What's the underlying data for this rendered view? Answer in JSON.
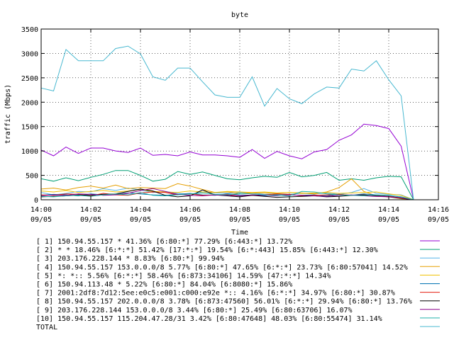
{
  "chart_data": {
    "type": "line",
    "title": "byte",
    "xlabel": "Time",
    "ylabel": "traffic (Mbps)",
    "ylim": [
      0,
      3500
    ],
    "xlim": [
      0,
      16
    ],
    "yticks": [
      0,
      500,
      1000,
      1500,
      2000,
      2500,
      3000,
      3500
    ],
    "xticks": [
      {
        "t": 0,
        "time": "14:00",
        "date": "09/05"
      },
      {
        "t": 2,
        "time": "14:02",
        "date": "09/05"
      },
      {
        "t": 4,
        "time": "14:04",
        "date": "09/05"
      },
      {
        "t": 6,
        "time": "14:06",
        "date": "09/05"
      },
      {
        "t": 8,
        "time": "14:08",
        "date": "09/05"
      },
      {
        "t": 10,
        "time": "14:10",
        "date": "09/05"
      },
      {
        "t": 12,
        "time": "14:12",
        "date": "09/05"
      },
      {
        "t": 14,
        "time": "14:14",
        "date": "09/05"
      },
      {
        "t": 16,
        "time": "14:16",
        "date": "09/05"
      }
    ],
    "x": [
      0,
      0.5,
      1,
      1.5,
      2,
      2.5,
      3,
      3.5,
      4,
      4.5,
      5,
      5.5,
      6,
      6.5,
      7,
      7.5,
      8,
      8.5,
      9,
      9.5,
      10,
      10.5,
      11,
      11.5,
      12,
      12.5,
      13,
      13.5,
      14,
      14.5,
      15
    ],
    "series": [
      {
        "name": "[ 1] 150.94.55.157 * 41.36%  [6:80:*] 77.29% [6:443:*] 13.72%",
        "color": "#9400d3",
        "values": [
          1020,
          900,
          1080,
          950,
          1060,
          1060,
          1000,
          970,
          1060,
          910,
          930,
          900,
          980,
          920,
          920,
          900,
          870,
          1030,
          850,
          990,
          900,
          840,
          980,
          1030,
          1220,
          1330,
          1550,
          1520,
          1460,
          1100,
          0
        ]
      },
      {
        "name": "[ 2] * * 18.46%  [6:*:*] 51.42% [17:*:*] 19.54% [6:*:443] 15.85% [6:443:*] 12.30%",
        "color": "#009e73",
        "values": [
          430,
          380,
          450,
          390,
          460,
          520,
          600,
          600,
          500,
          380,
          420,
          580,
          520,
          570,
          500,
          430,
          410,
          450,
          480,
          460,
          560,
          470,
          500,
          560,
          400,
          430,
          400,
          450,
          480,
          470,
          0
        ]
      },
      {
        "name": "[ 3] 203.176.228.144 * 8.83%  [6:80:*] 99.94%",
        "color": "#56b4e9",
        "values": [
          150,
          100,
          130,
          170,
          160,
          230,
          190,
          240,
          200,
          150,
          170,
          130,
          110,
          160,
          140,
          130,
          150,
          140,
          110,
          120,
          110,
          130,
          120,
          140,
          110,
          150,
          230,
          130,
          110,
          100,
          0
        ]
      },
      {
        "name": "[ 4] 150.94.55.157 153.0.0.0/8 5.77%  [6:80:*] 47.65% [6:*:*] 23.73% [6:80:57041] 14.52%",
        "color": "#e69f00",
        "values": [
          220,
          240,
          200,
          250,
          280,
          240,
          300,
          230,
          250,
          240,
          230,
          330,
          280,
          210,
          150,
          160,
          130,
          140,
          140,
          130,
          150,
          140,
          120,
          160,
          250,
          430,
          170,
          80,
          60,
          20,
          0
        ]
      },
      {
        "name": "[ 5] *: *:: 5.56%  [6:*:*] 58.46% [6:873:34106] 14.59% [47:*:*] 14.34%",
        "color": "#f0c000",
        "values": [
          180,
          160,
          190,
          150,
          170,
          190,
          160,
          180,
          210,
          170,
          160,
          150,
          180,
          160,
          150,
          170,
          160,
          150,
          160,
          140,
          150,
          130,
          140,
          150,
          130,
          140,
          150,
          160,
          120,
          90,
          0
        ]
      },
      {
        "name": "[ 6] 150.94.113.48 * 5.22%  [6:80:*] 84.04% [6:8080:*] 15.86%",
        "color": "#0072b2",
        "values": [
          90,
          110,
          100,
          80,
          120,
          100,
          110,
          140,
          120,
          100,
          90,
          110,
          130,
          100,
          90,
          120,
          100,
          90,
          80,
          110,
          100,
          90,
          100,
          80,
          110,
          90,
          120,
          100,
          80,
          60,
          0
        ]
      },
      {
        "name": "[ 7] 2001:2df8:7d12:5ee:e0c5:e001:c000:e92e *:: 4.16%  [6:*:*] 34.97% [6:80:*] 30.87%",
        "color": "#e51e10",
        "values": [
          100,
          90,
          120,
          110,
          80,
          130,
          100,
          90,
          140,
          160,
          150,
          100,
          120,
          90,
          100,
          110,
          80,
          90,
          100,
          120,
          110,
          80,
          90,
          100,
          110,
          90,
          100,
          80,
          70,
          40,
          0
        ]
      },
      {
        "name": "[ 8] 150.94.55.157 202.0.0.0/8 3.78%  [6:873:47560] 56.01% [6:*:*] 29.94% [6:80:*] 13.76%",
        "color": "#000000",
        "values": [
          60,
          70,
          80,
          100,
          90,
          110,
          120,
          170,
          220,
          180,
          90,
          60,
          80,
          200,
          100,
          80,
          60,
          90,
          70,
          50,
          60,
          70,
          80,
          60,
          70,
          90,
          100,
          80,
          60,
          30,
          0
        ]
      },
      {
        "name": "[ 9] 203.176.228.144 153.0.0.0/8 3.44%  [6:80:*] 25.49% [6:80:63706] 16.07%",
        "color": "#8b008b",
        "values": [
          80,
          100,
          90,
          120,
          110,
          90,
          100,
          130,
          190,
          230,
          170,
          110,
          90,
          80,
          100,
          90,
          80,
          100,
          90,
          80,
          100,
          90,
          80,
          70,
          90,
          100,
          80,
          70,
          60,
          40,
          0
        ]
      },
      {
        "name": "[10] 150.94.55.157 115.204.47.28/31 3.42%  [6:80:47648] 48.03% [6:80:55474] 31.14%",
        "color": "#20b2aa",
        "values": [
          70,
          60,
          80,
          90,
          70,
          100,
          120,
          100,
          150,
          90,
          80,
          100,
          120,
          140,
          110,
          100,
          130,
          120,
          100,
          90,
          80,
          170,
          160,
          120,
          100,
          90,
          80,
          100,
          90,
          60,
          0
        ]
      },
      {
        "name": "TOTAL",
        "color": "#48b8d0",
        "values": [
          2290,
          2230,
          3080,
          2850,
          2850,
          2850,
          3100,
          3150,
          2990,
          2520,
          2450,
          2700,
          2700,
          2420,
          2150,
          2100,
          2100,
          2520,
          1920,
          2280,
          2070,
          1970,
          2170,
          2310,
          2290,
          2680,
          2640,
          2850,
          2460,
          2130,
          0
        ]
      }
    ]
  }
}
